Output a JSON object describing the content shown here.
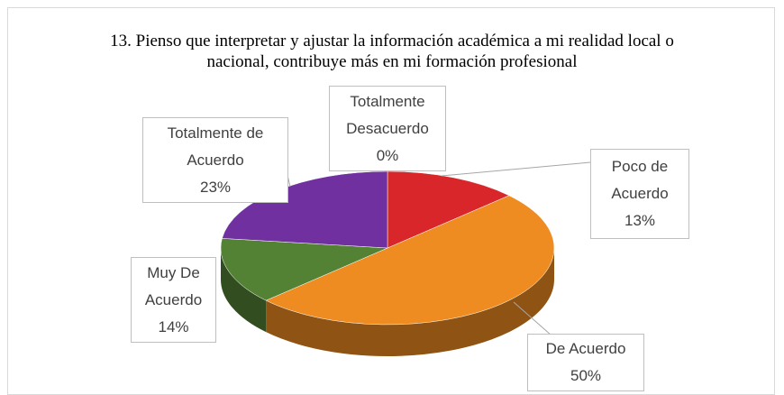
{
  "chart_data": {
    "type": "pie",
    "title": "13. Pienso que interpretar y ajustar la información académica a mi realidad local o nacional, contribuye más en mi formación profesional",
    "categories": [
      "Totalmente Desacuerdo",
      "Poco de Acuerdo",
      "De Acuerdo",
      "Muy De Acuerdo",
      "Totalmente de Acuerdo"
    ],
    "values": [
      0,
      13,
      50,
      14,
      23
    ],
    "value_labels": [
      "0%",
      "13%",
      "50%",
      "14%",
      "23%"
    ],
    "colors": [
      "#4472c4",
      "#d9262a",
      "#ee8c22",
      "#548235",
      "#7030a0"
    ]
  }
}
